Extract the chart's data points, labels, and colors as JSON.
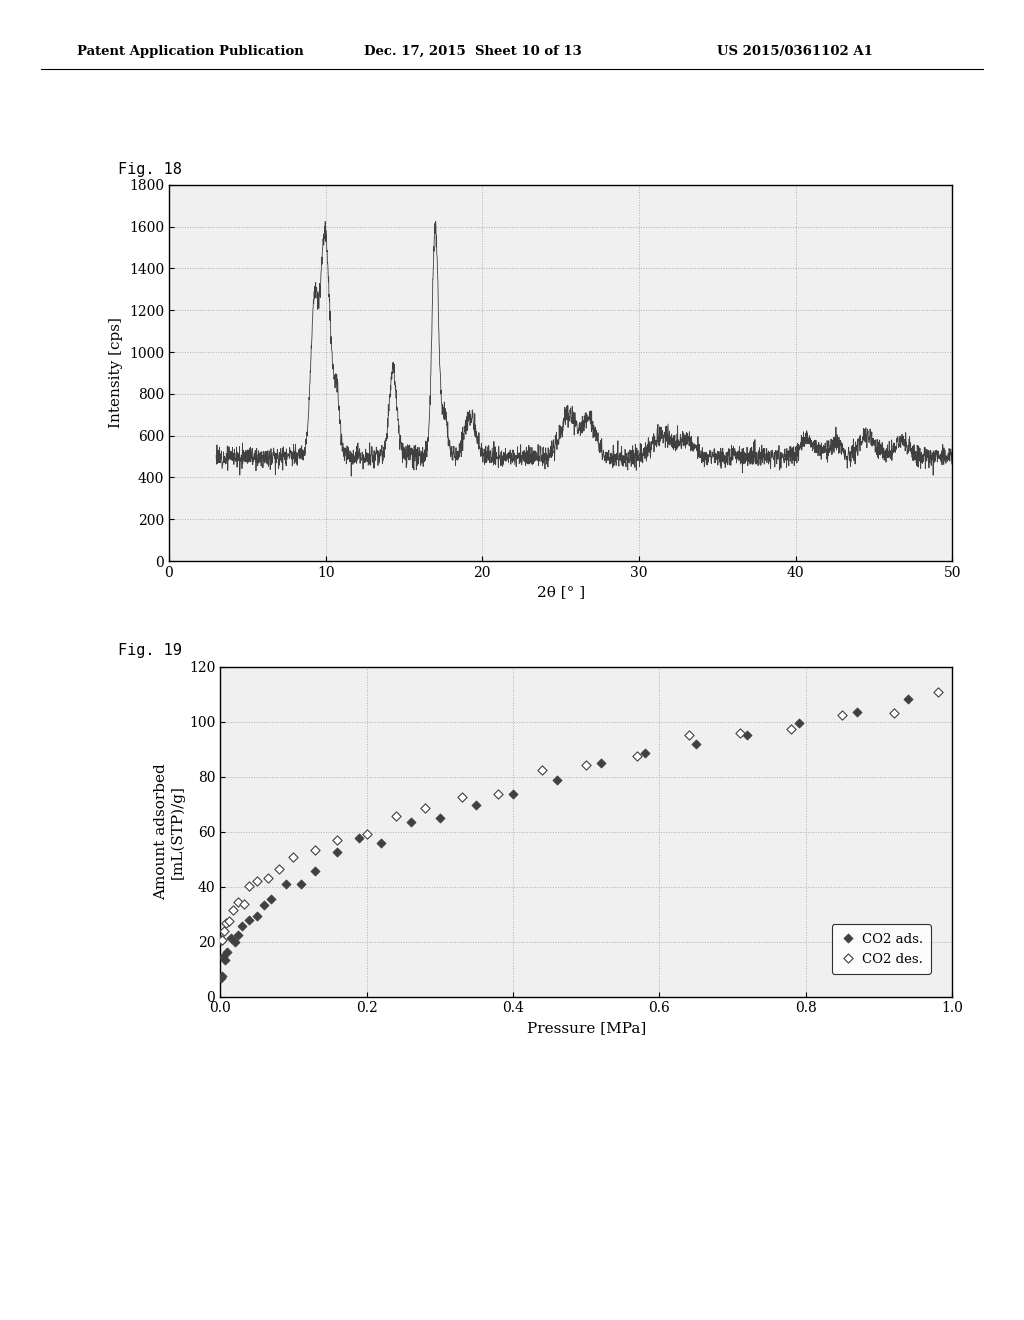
{
  "fig18_label": "Fig. 18",
  "fig19_label": "Fig. 19",
  "header_left": "Patent Application Publication",
  "header_mid": "Dec. 17, 2015  Sheet 10 of 13",
  "header_right": "US 2015/0361102 A1",
  "fig18": {
    "ylabel": "Intensity [cps]",
    "xlabel": "2θ [° ]",
    "xlim": [
      0,
      50
    ],
    "ylim": [
      0,
      1800
    ],
    "yticks": [
      0,
      200,
      400,
      600,
      800,
      1000,
      1200,
      1400,
      1600,
      1800
    ],
    "xticks": [
      0,
      10,
      20,
      30,
      40,
      50
    ]
  },
  "fig19": {
    "ylabel": "Amount adsorbed\n[mL(STP)/g]",
    "xlabel": "Pressure [MPa]",
    "xlim": [
      0.0,
      1.0
    ],
    "ylim": [
      0,
      120
    ],
    "yticks": [
      0,
      20,
      40,
      60,
      80,
      100,
      120
    ],
    "xticks": [
      0.0,
      0.2,
      0.4,
      0.6,
      0.8,
      1.0
    ],
    "legend_ads": "CO2 ads.",
    "legend_des": "CO2 des."
  },
  "bg_color": "#ffffff",
  "line_color": "#404040",
  "grid_color": "#b0b0b0",
  "scatter_ads_color": "#404040",
  "scatter_des_color": "#ffffff"
}
